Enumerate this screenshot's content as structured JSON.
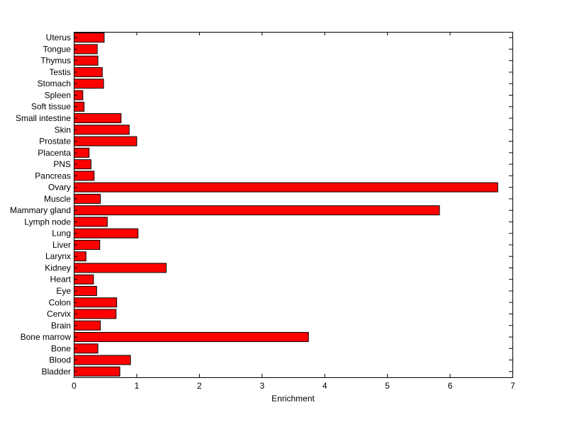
{
  "chart_data": {
    "type": "bar",
    "orientation": "horizontal",
    "title": "",
    "xlabel": "Enrichment",
    "ylabel": "",
    "xlim": [
      0,
      7
    ],
    "xticks": [
      "0",
      "1",
      "2",
      "3",
      "4",
      "5",
      "6",
      "7"
    ],
    "grid": false,
    "legend": "none",
    "bar_color": "#ff0000",
    "edge_color": "#000000",
    "categories": [
      "Bladder",
      "Blood",
      "Bone",
      "Bone marrow",
      "Brain",
      "Cervix",
      "Colon",
      "Eye",
      "Heart",
      "Kidney",
      "Larynx",
      "Liver",
      "Lung",
      "Lymph node",
      "Mammary gland",
      "Muscle",
      "Ovary",
      "Pancreas",
      "PNS",
      "Placenta",
      "Prostate",
      "Skin",
      "Small intestine",
      "Soft tissue",
      "Spleen",
      "Stomach",
      "Testis",
      "Thymus",
      "Tongue",
      "Uterus"
    ],
    "values": [
      0.73,
      0.9,
      0.38,
      3.74,
      0.42,
      0.67,
      0.68,
      0.36,
      0.31,
      1.47,
      0.19,
      0.41,
      1.02,
      0.53,
      5.83,
      0.42,
      6.76,
      0.32,
      0.27,
      0.24,
      1.0,
      0.88,
      0.75,
      0.16,
      0.14,
      0.47,
      0.45,
      0.38,
      0.37,
      0.48
    ]
  }
}
